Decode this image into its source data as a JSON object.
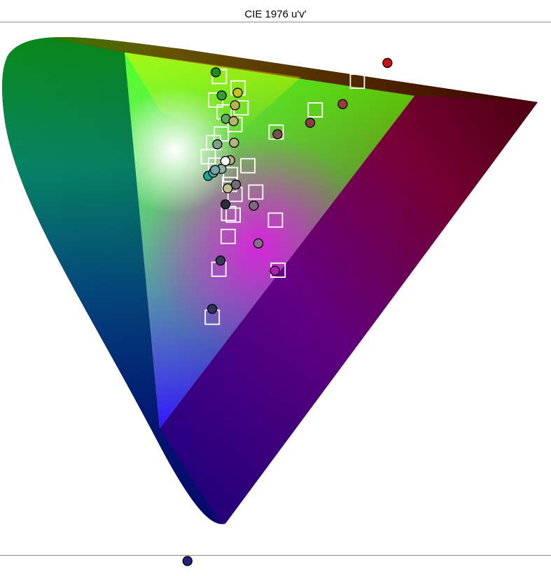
{
  "chart_data": {
    "type": "scatter",
    "title": "CIE 1976 u'v'",
    "xlabel": "",
    "ylabel": "",
    "grid": false,
    "colors": {
      "rule": "#8c8c8c",
      "square_stroke": "#ffffff",
      "circle_stroke": "#000000"
    },
    "series": [
      {
        "marker": "square",
        "points": [
          {
            "u": 0.075,
            "v": 0.596
          },
          {
            "u": 0.073,
            "v": 0.577
          },
          {
            "u": 0.085,
            "v": 0.566
          },
          {
            "u": 0.1,
            "v": 0.584
          },
          {
            "u": 0.106,
            "v": 0.567
          },
          {
            "u": 0.1,
            "v": 0.554
          },
          {
            "u": 0.084,
            "v": 0.548
          },
          {
            "u": 0.075,
            "v": 0.542
          },
          {
            "u": 0.07,
            "v": 0.531
          },
          {
            "u": 0.08,
            "v": 0.523
          },
          {
            "u": 0.1,
            "v": 0.513
          },
          {
            "u": 0.1,
            "v": 0.505
          },
          {
            "u": 0.108,
            "v": 0.496
          },
          {
            "u": 0.102,
            "v": 0.481
          },
          {
            "u": 0.108,
            "v": 0.479
          },
          {
            "u": 0.104,
            "v": 0.462
          },
          {
            "u": 0.096,
            "v": 0.436
          },
          {
            "u": 0.093,
            "v": 0.397
          },
          {
            "u": 0.088,
            "v": 0.202
          },
          {
            "u": 0.121,
            "v": 0.518
          },
          {
            "u": 0.153,
            "v": 0.542
          },
          {
            "u": 0.2,
            "v": 0.555
          },
          {
            "u": 0.25,
            "v": 0.573
          },
          {
            "u": 0.3,
            "v": 0.586
          },
          {
            "u": 0.347,
            "v": 0.579
          },
          {
            "u": 0.134,
            "v": 0.495
          },
          {
            "u": 0.162,
            "v": 0.469
          },
          {
            "u": 0.171,
            "v": 0.427
          }
        ]
      },
      {
        "marker": "circle",
        "points": [
          {
            "u": 0.07,
            "v": 0.6,
            "color": "#1e8c1e"
          },
          {
            "u": 0.08,
            "v": 0.58,
            "color": "#3a9a3a"
          },
          {
            "u": 0.088,
            "v": 0.56,
            "color": "#5fa95f"
          },
          {
            "u": 0.1,
            "v": 0.58,
            "color": "#c9c21a"
          },
          {
            "u": 0.098,
            "v": 0.57,
            "color": "#b9b24a"
          },
          {
            "u": 0.098,
            "v": 0.557,
            "color": "#b8b468"
          },
          {
            "u": 0.101,
            "v": 0.539,
            "color": "#b8b37e"
          },
          {
            "u": 0.098,
            "v": 0.525,
            "color": "#b0ad84"
          },
          {
            "u": 0.098,
            "v": 0.502,
            "color": "#c2bf8e"
          },
          {
            "u": 0.08,
            "v": 0.54,
            "color": "#7fa08a"
          },
          {
            "u": 0.088,
            "v": 0.519,
            "color": "#88b0a8"
          },
          {
            "u": 0.072,
            "v": 0.515,
            "color": "#18a8a0"
          },
          {
            "u": 0.078,
            "v": 0.517,
            "color": "#5aa8a8"
          },
          {
            "u": 0.08,
            "v": 0.519,
            "color": "#72a8a8"
          },
          {
            "u": 0.092,
            "v": 0.525,
            "color": "#ffffff"
          },
          {
            "u": 0.108,
            "v": 0.504,
            "color": "#6e6e7e"
          },
          {
            "u": 0.097,
            "v": 0.489,
            "color": "#2c2c3c"
          },
          {
            "u": 0.133,
            "v": 0.484,
            "color": "#7e6a7e"
          },
          {
            "u": 0.143,
            "v": 0.452,
            "color": "#8e6e8e"
          },
          {
            "u": 0.097,
            "v": 0.443,
            "color": "#383858"
          },
          {
            "u": 0.092,
            "v": 0.404,
            "color": "#333358"
          },
          {
            "u": 0.089,
            "v": 0.198,
            "color": "#22207a"
          },
          {
            "u": 0.167,
            "v": 0.427,
            "color": "#b020b0"
          },
          {
            "u": 0.155,
            "v": 0.54,
            "color": "#7e4e4e"
          },
          {
            "u": 0.195,
            "v": 0.545,
            "color": "#8a3e3e"
          },
          {
            "u": 0.234,
            "v": 0.556,
            "color": "#a03a3a"
          },
          {
            "u": 0.286,
            "v": 0.584,
            "color": "#cc1010"
          }
        ]
      }
    ]
  }
}
